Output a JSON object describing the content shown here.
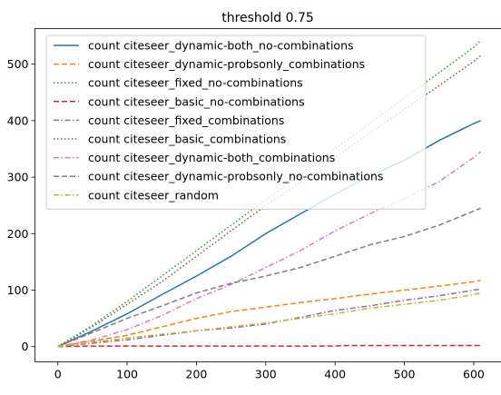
{
  "chart_data": {
    "type": "line",
    "title": "threshold 0.75",
    "xlabel": "",
    "ylabel": "",
    "xlim": [
      -33,
      640
    ],
    "ylim": [
      -27,
      563
    ],
    "xticks": [
      0,
      100,
      200,
      300,
      400,
      500,
      600
    ],
    "yticks": [
      0,
      100,
      200,
      300,
      400,
      500
    ],
    "grid": false,
    "legend_position": "upper left",
    "series": [
      {
        "name": "count citeseer_dynamic-both_no-combinations",
        "color": "#1f77b4",
        "dash": "solid",
        "x": [
          0,
          50,
          100,
          150,
          200,
          250,
          300,
          350,
          400,
          450,
          500,
          550,
          600,
          610
        ],
        "y": [
          0,
          28,
          58,
          92,
          125,
          160,
          200,
          235,
          270,
          302,
          330,
          365,
          395,
          400
        ]
      },
      {
        "name": "count citeseer_dynamic-probsonly_combinations",
        "color": "#ff7f0e",
        "dash": "dashed",
        "x": [
          0,
          50,
          100,
          150,
          200,
          250,
          300,
          350,
          400,
          450,
          500,
          550,
          600,
          610
        ],
        "y": [
          0,
          10,
          20,
          35,
          50,
          62,
          70,
          78,
          85,
          93,
          100,
          107,
          115,
          117
        ]
      },
      {
        "name": "count citeseer_fixed_no-combinations",
        "color": "#2ca02c",
        "dash": "dotted",
        "x": [
          0,
          50,
          100,
          150,
          200,
          250,
          300,
          350,
          400,
          450,
          500,
          550,
          600,
          610
        ],
        "y": [
          0,
          38,
          80,
          125,
          170,
          215,
          260,
          305,
          350,
          395,
          440,
          485,
          530,
          542
        ]
      },
      {
        "name": "count citeseer_basic_no-combinations",
        "color": "#d62728",
        "dash": "dashed",
        "x": [
          0,
          50,
          100,
          200,
          300,
          400,
          410,
          420,
          500,
          600,
          610
        ],
        "y": [
          0,
          1,
          1,
          1,
          1,
          1,
          2,
          2,
          2,
          2,
          2
        ]
      },
      {
        "name": "count citeseer_fixed_combinations",
        "color": "#9467bd",
        "dash": "dashdot",
        "x": [
          0,
          50,
          100,
          150,
          200,
          250,
          300,
          350,
          400,
          450,
          500,
          550,
          600,
          610
        ],
        "y": [
          0,
          6,
          12,
          20,
          28,
          33,
          40,
          52,
          64,
          72,
          82,
          90,
          100,
          102
        ]
      },
      {
        "name": "count citeseer_basic_combinations",
        "color": "#8c564b",
        "dash": "dotted",
        "x": [
          0,
          50,
          100,
          150,
          200,
          250,
          300,
          350,
          400,
          450,
          500,
          550,
          600,
          610
        ],
        "y": [
          0,
          35,
          75,
          115,
          160,
          205,
          250,
          290,
          335,
          378,
          420,
          462,
          505,
          515
        ]
      },
      {
        "name": "count citeseer_dynamic-both_combinations",
        "color": "#e377c2",
        "dash": "dashdot",
        "x": [
          0,
          50,
          100,
          150,
          200,
          250,
          300,
          350,
          400,
          450,
          500,
          550,
          600,
          610
        ],
        "y": [
          0,
          12,
          30,
          55,
          85,
          110,
          140,
          170,
          205,
          235,
          262,
          292,
          335,
          345
        ]
      },
      {
        "name": "count citeseer_dynamic-probsonly_no-combinations",
        "color": "#7f7f7f",
        "dash": "dashed",
        "x": [
          0,
          50,
          100,
          150,
          200,
          250,
          300,
          350,
          400,
          450,
          500,
          550,
          600,
          610
        ],
        "y": [
          0,
          25,
          50,
          72,
          95,
          112,
          125,
          140,
          160,
          180,
          195,
          215,
          240,
          245
        ]
      },
      {
        "name": "count citeseer_random",
        "color": "#bcbd22",
        "dash": "dashdot",
        "x": [
          0,
          50,
          100,
          150,
          200,
          250,
          300,
          350,
          400,
          450,
          500,
          550,
          600,
          610
        ],
        "y": [
          0,
          8,
          15,
          22,
          28,
          35,
          42,
          50,
          58,
          68,
          75,
          82,
          92,
          95
        ]
      }
    ]
  }
}
